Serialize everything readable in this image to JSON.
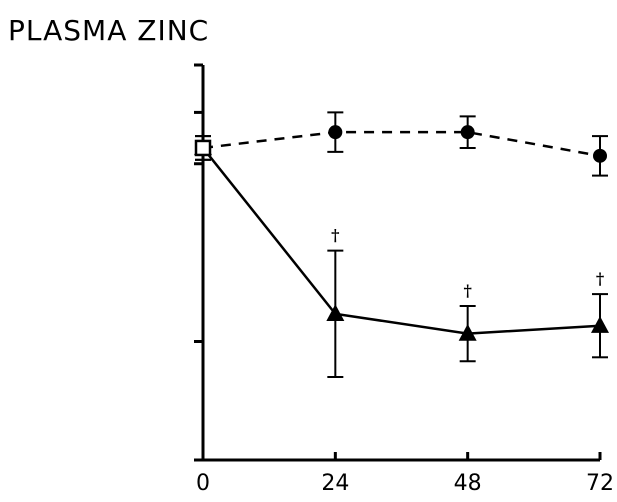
{
  "chart_data": {
    "type": "line",
    "title": "PLASMA ZINC",
    "xlabel": "",
    "ylabel": "",
    "x": [
      0,
      24,
      48,
      72
    ],
    "x_tick_labels": [
      "0",
      "24",
      "48",
      "72"
    ],
    "xlim": [
      0,
      72
    ],
    "ylim": [
      0,
      100
    ],
    "y_ticks": [
      0,
      30,
      75,
      88,
      100
    ],
    "series": [
      {
        "marker": "circle",
        "line": "dashed",
        "values": [
          79,
          83,
          83,
          77
        ],
        "err": [
          3,
          5,
          4,
          5
        ]
      },
      {
        "marker": "triangle",
        "line": "solid",
        "values": [
          79,
          37,
          32,
          34
        ],
        "err": [
          3,
          16,
          7,
          8
        ],
        "annotations": [
          "",
          "†",
          "†",
          "†"
        ]
      }
    ],
    "colors": {
      "ink": "#000000",
      "background": "#ffffff"
    }
  }
}
